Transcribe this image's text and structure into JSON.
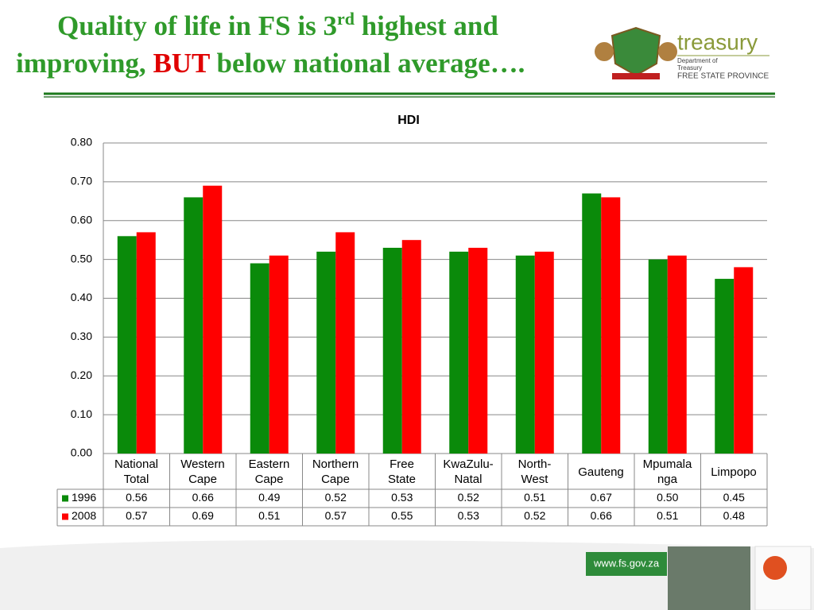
{
  "slide": {
    "title_line1": "Quality of life in FS is 3",
    "title_sup": "rd",
    "title_line1_end": " highest and",
    "title_line2_start": "improving, ",
    "title_emphasis": "BUT",
    "title_line2_end": " below national average….",
    "logo_name": "treasury",
    "logo_dept": "Department of",
    "logo_dept2": "Treasury",
    "logo_province": "FREE STATE PROVINCE",
    "website": "www.fs.gov.za"
  },
  "chart_data": {
    "type": "bar",
    "title": "HDI",
    "categories": [
      "National\nTotal",
      "Western\nCape",
      "Eastern\nCape",
      "Northern\nCape",
      "Free\nState",
      "KwaZulu-\nNatal",
      "North-\nWest",
      "Gauteng",
      "Mpumala\nnga",
      "Limpopo"
    ],
    "series": [
      {
        "name": "1996",
        "color": "#0a8a0a",
        "values": [
          0.56,
          0.66,
          0.49,
          0.52,
          0.53,
          0.52,
          0.51,
          0.67,
          0.5,
          0.45
        ],
        "value_labels": [
          "0.56",
          "0.66",
          "0.49",
          "0.52",
          "0.53",
          "0.52",
          "0.51",
          "0.67",
          "0.50",
          "0.45"
        ]
      },
      {
        "name": "2008",
        "color": "#ff0000",
        "values": [
          0.57,
          0.69,
          0.51,
          0.57,
          0.55,
          0.53,
          0.52,
          0.66,
          0.51,
          0.48
        ],
        "value_labels": [
          "0.57",
          "0.69",
          "0.51",
          "0.57",
          "0.55",
          "0.53",
          "0.52",
          "0.66",
          "0.51",
          "0.48"
        ]
      }
    ],
    "ylim": [
      0,
      0.8
    ],
    "yticks": [
      {
        "value": 0,
        "label": "0.00"
      },
      {
        "value": 0.1,
        "label": "0.10"
      },
      {
        "value": 0.2,
        "label": "0.20"
      },
      {
        "value": 0.3,
        "label": "0.30"
      },
      {
        "value": 0.4,
        "label": "0.40"
      },
      {
        "value": 0.5,
        "label": "0.50"
      },
      {
        "value": 0.6,
        "label": "0.60"
      },
      {
        "value": 0.7,
        "label": "0.70"
      },
      {
        "value": 0.8,
        "label": "0.80"
      }
    ],
    "grid": true
  }
}
